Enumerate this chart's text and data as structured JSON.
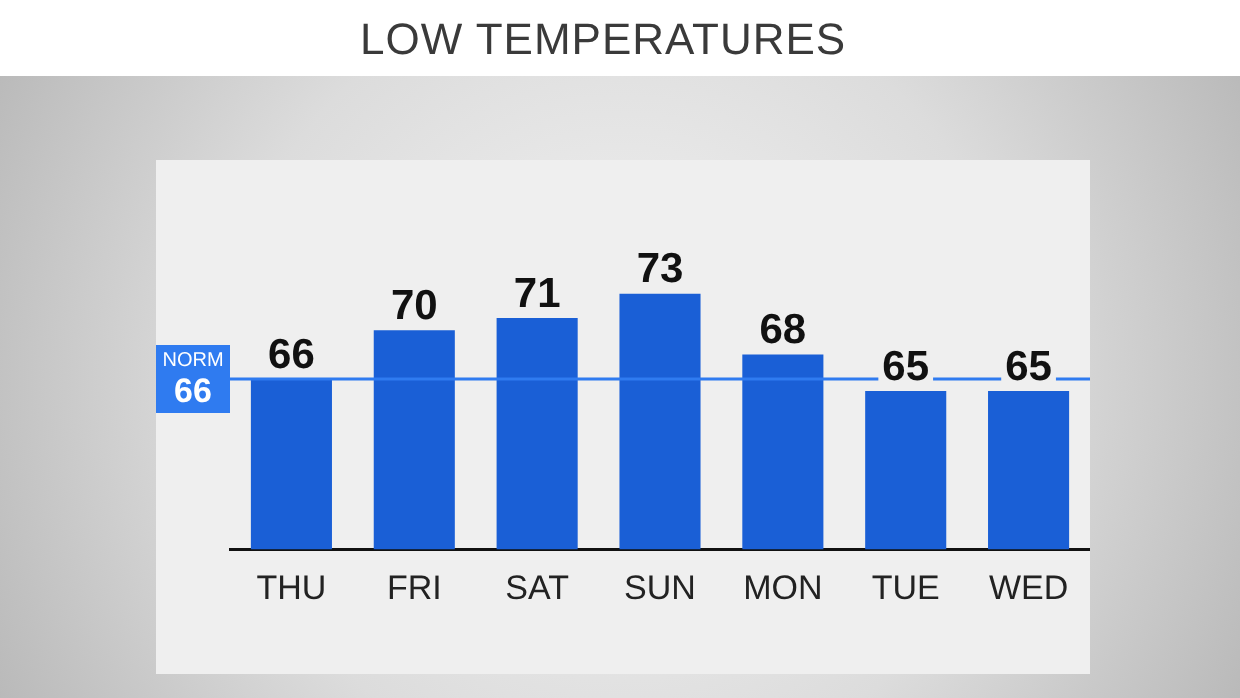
{
  "chart_data": {
    "type": "bar",
    "title": "LOW TEMPERATURES",
    "categories": [
      "THU",
      "FRI",
      "SAT",
      "SUN",
      "MON",
      "TUE",
      "WED"
    ],
    "values": [
      66,
      70,
      71,
      73,
      68,
      65,
      65
    ],
    "color": "#1a5fd6",
    "ylim": [
      52,
      84
    ],
    "tick_labels": "x",
    "data_labels": true,
    "ref_lines": [
      {
        "axis": "y",
        "value": 66,
        "label": "NORM 66",
        "color": "#2f7bf0"
      }
    ]
  }
}
